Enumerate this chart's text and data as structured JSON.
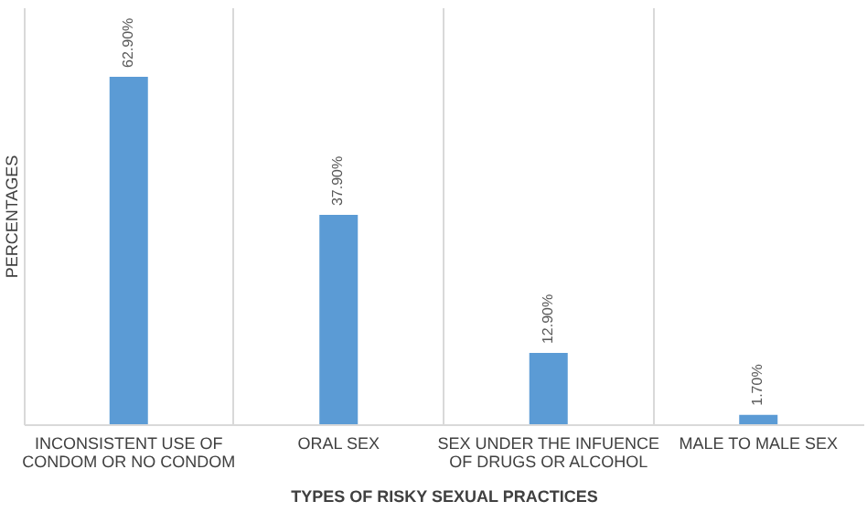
{
  "chart_data": {
    "type": "bar",
    "xlabel": "TYPES OF RISKY SEXUAL PRACTICES",
    "ylabel": "PERCENTAGES",
    "categories": [
      "INCONSISTENT USE OF CONDOM OR NO CONDOM",
      "ORAL SEX",
      "SEX UNDER THE INFUENCE OF DRUGS OR ALCOHOL",
      "MALE TO MALE SEX"
    ],
    "values": [
      62.9,
      37.9,
      12.9,
      1.7
    ],
    "value_labels": [
      "62.90%",
      "37.90%",
      "12.90%",
      "1.70%"
    ],
    "color": "#5b9bd5",
    "grid": "x",
    "tick_labels": "x"
  }
}
